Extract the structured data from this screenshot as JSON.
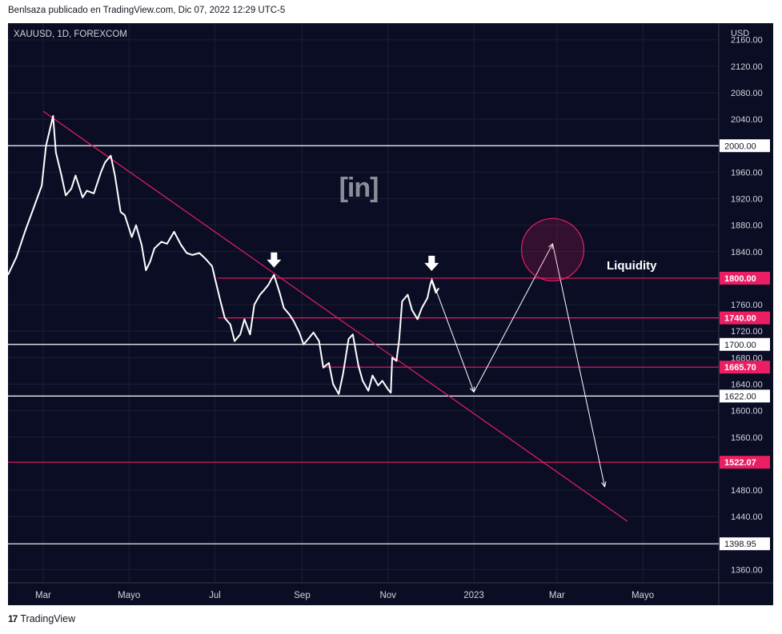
{
  "header": {
    "publish_line": "Benlsaza publicado en TradingView.com, Dic 07, 2022 12:29 UTC-5"
  },
  "footer": {
    "brand": "TradingView"
  },
  "colors": {
    "background": "#0b0d25",
    "price_line": "#ffffff",
    "accent": "#e91e63",
    "grid": "#1c2033"
  },
  "chart_data": {
    "type": "line",
    "symbol_label": "XAUUSD, 1D, FOREXCOM",
    "currency": "USD",
    "x_ticks": [
      "Mar",
      "Mayo",
      "Jul",
      "Sep",
      "Nov",
      "2023",
      "Mar",
      "Mayo"
    ],
    "y_ticks": [
      2160,
      2120,
      2080,
      2040,
      1960,
      1920,
      1880,
      1840,
      1760,
      1720,
      1680,
      1640,
      1600,
      1560,
      1480,
      1440,
      1360
    ],
    "ylim": [
      1340,
      2185
    ],
    "xlim": [
      "2022-02-04",
      "2023-06-24"
    ],
    "grid": true,
    "series": [
      {
        "x": [
          "2022-02-04",
          "2022-02-10",
          "2022-02-16",
          "2022-02-22",
          "2022-02-28",
          "2022-03-03",
          "2022-03-08",
          "2022-03-10",
          "2022-03-14",
          "2022-03-17",
          "2022-03-21",
          "2022-03-24",
          "2022-03-29",
          "2022-04-01",
          "2022-04-06",
          "2022-04-11",
          "2022-04-14",
          "2022-04-18",
          "2022-04-21",
          "2022-04-25",
          "2022-04-28",
          "2022-05-03",
          "2022-05-06",
          "2022-05-10",
          "2022-05-13",
          "2022-05-16",
          "2022-05-19",
          "2022-05-24",
          "2022-05-28",
          "2022-06-02",
          "2022-06-07",
          "2022-06-11",
          "2022-06-15",
          "2022-06-20",
          "2022-06-24",
          "2022-06-29",
          "2022-07-01",
          "2022-07-05",
          "2022-07-08",
          "2022-07-12",
          "2022-07-15",
          "2022-07-19",
          "2022-07-22",
          "2022-07-26",
          "2022-07-29",
          "2022-08-02",
          "2022-08-05",
          "2022-08-08",
          "2022-08-10",
          "2022-08-12",
          "2022-08-16",
          "2022-08-19",
          "2022-08-23",
          "2022-08-26",
          "2022-08-30",
          "2022-09-02",
          "2022-09-06",
          "2022-09-09",
          "2022-09-13",
          "2022-09-16",
          "2022-09-20",
          "2022-09-23",
          "2022-09-27",
          "2022-09-30",
          "2022-10-04",
          "2022-10-07",
          "2022-10-11",
          "2022-10-14",
          "2022-10-18",
          "2022-10-21",
          "2022-10-25",
          "2022-10-28",
          "2022-11-01",
          "2022-11-03",
          "2022-11-04",
          "2022-11-07",
          "2022-11-09",
          "2022-11-11",
          "2022-11-15",
          "2022-11-18",
          "2022-11-22",
          "2022-11-25",
          "2022-11-29",
          "2022-12-01",
          "2022-12-02",
          "2022-12-05",
          "2022-12-07"
        ],
        "y": [
          1805,
          1832,
          1870,
          1905,
          1940,
          2000,
          2045,
          1990,
          1955,
          1925,
          1935,
          1955,
          1922,
          1932,
          1928,
          1960,
          1975,
          1985,
          1955,
          1900,
          1895,
          1862,
          1880,
          1850,
          1812,
          1825,
          1845,
          1855,
          1852,
          1870,
          1850,
          1838,
          1835,
          1838,
          1830,
          1818,
          1800,
          1765,
          1740,
          1730,
          1705,
          1715,
          1738,
          1715,
          1760,
          1775,
          1782,
          1790,
          1798,
          1805,
          1778,
          1755,
          1745,
          1735,
          1718,
          1700,
          1710,
          1718,
          1705,
          1665,
          1672,
          1640,
          1625,
          1655,
          1708,
          1715,
          1668,
          1645,
          1630,
          1653,
          1638,
          1645,
          1632,
          1627,
          1680,
          1675,
          1708,
          1765,
          1775,
          1752,
          1738,
          1755,
          1770,
          1790,
          1797,
          1778,
          1785
        ]
      }
    ],
    "levels": [
      {
        "value": 2000.0,
        "label": "2000.00",
        "color": "#ffffff",
        "style": "full"
      },
      {
        "value": 1800.0,
        "label": "1800.00",
        "color": "#e91e63",
        "style": "partial"
      },
      {
        "value": 1740.0,
        "label": "1740.00",
        "color": "#e91e63",
        "style": "partial"
      },
      {
        "value": 1700.0,
        "label": "1700.00",
        "color": "#ffffff",
        "style": "full"
      },
      {
        "value": 1665.7,
        "label": "1665.70",
        "color": "#e91e63",
        "style": "partial"
      },
      {
        "value": 1622.0,
        "label": "1622.00",
        "color": "#ffffff",
        "style": "full"
      },
      {
        "value": 1522.07,
        "label": "1522.07",
        "color": "#e91e63",
        "style": "full"
      },
      {
        "value": 1398.95,
        "label": "1398.95",
        "color": "#ffffff",
        "style": "full"
      }
    ],
    "trendline": {
      "from": [
        "2022-03-01",
        2052
      ],
      "to": [
        "2023-04-20",
        1433
      ],
      "color": "#e91e63"
    },
    "projection_path": [
      [
        "2022-12-02",
        1800
      ],
      [
        "2023-01-01",
        1628
      ],
      [
        "2023-02-26",
        1852
      ],
      [
        "2023-04-04",
        1485
      ]
    ],
    "projection_extra": [
      [
        "2022-12-02",
        1800
      ],
      [
        "2022-12-07",
        1790
      ]
    ],
    "liquidity_zone": {
      "center": [
        "2023-02-26",
        1843
      ],
      "radius_days": 23,
      "label": "Liquidity",
      "color": "#e91e63"
    },
    "markers": [
      {
        "x": "2022-08-12",
        "y": 1805,
        "type": "down-arrow"
      },
      {
        "x": "2022-12-02",
        "y": 1800,
        "type": "down-arrow"
      }
    ]
  }
}
